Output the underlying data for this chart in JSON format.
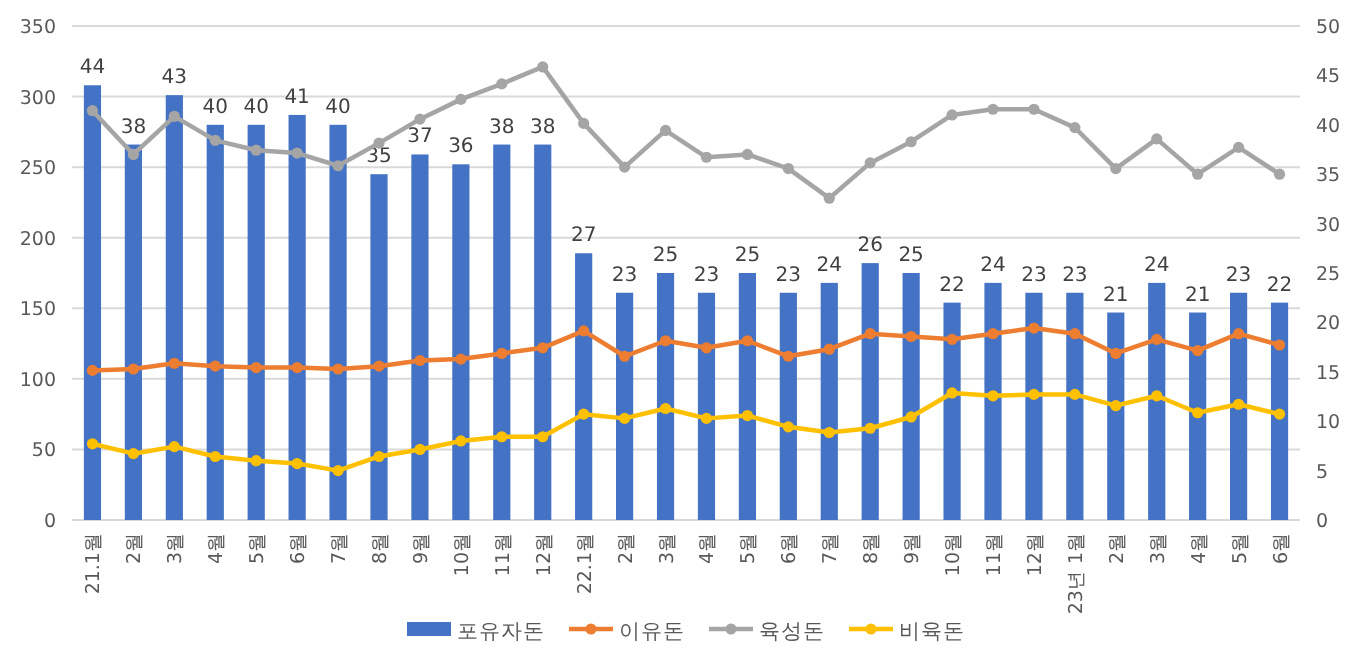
{
  "chart_data": {
    "type": "bar",
    "categories": [
      "21.1월",
      "2월",
      "3월",
      "4월",
      "5월",
      "6월",
      "7월",
      "8월",
      "9월",
      "10월",
      "11월",
      "12월",
      "22.1월",
      "2월",
      "3월",
      "4월",
      "5월",
      "6월",
      "7월",
      "8월",
      "9월",
      "10월",
      "11월",
      "12월",
      "23년 1월",
      "2월",
      "3월",
      "4월",
      "5월",
      "6월"
    ],
    "series": [
      {
        "name": "포유자돈",
        "axis": "y2",
        "color": "#4472c4",
        "values": [
          44,
          38,
          43,
          40,
          40,
          41,
          40,
          35,
          37,
          36,
          38,
          38,
          27,
          23,
          25,
          23,
          25,
          23,
          24,
          26,
          25,
          22,
          24,
          23,
          23,
          21,
          24,
          21,
          23,
          22
        ],
        "value_labels": [
          "44",
          "38",
          "43",
          "40",
          "40",
          "41",
          "40",
          "35",
          "37",
          "36",
          "38",
          "38",
          "27",
          "23",
          "25",
          "23",
          "25",
          "23",
          "24",
          "26",
          "25",
          "22",
          "24",
          "23",
          "23",
          "21",
          "24",
          "21",
          "23",
          "22"
        ]
      },
      {
        "name": "이유돈",
        "type": "line",
        "color": "#ed7d31",
        "values": [
          106,
          107,
          111,
          109,
          108,
          108,
          107,
          109,
          113,
          114,
          118,
          122,
          134,
          116,
          127,
          122,
          127,
          116,
          121,
          132,
          130,
          128,
          132,
          136,
          132,
          118,
          128,
          120,
          132,
          124
        ]
      },
      {
        "name": "육성돈",
        "type": "line",
        "color": "#a5a5a5",
        "values": [
          290,
          259,
          286,
          269,
          262,
          260,
          251,
          267,
          284,
          298,
          309,
          321,
          281,
          250,
          276,
          257,
          259,
          249,
          228,
          253,
          268,
          287,
          291,
          291,
          278,
          249,
          270,
          245,
          264,
          245
        ]
      },
      {
        "name": "비육돈",
        "type": "line",
        "color": "#ffc000",
        "values": [
          54,
          47,
          52,
          45,
          42,
          40,
          35,
          45,
          50,
          56,
          59,
          59,
          75,
          72,
          79,
          72,
          74,
          66,
          62,
          65,
          73,
          90,
          88,
          89,
          89,
          81,
          88,
          76,
          82,
          75
        ]
      }
    ],
    "ylim": [
      0,
      350
    ],
    "yticks": [
      0,
      50,
      100,
      150,
      200,
      250,
      300,
      350
    ],
    "y2lim": [
      0,
      50
    ],
    "y2ticks": [
      0,
      5,
      10,
      15,
      20,
      25,
      30,
      35,
      40,
      45,
      50
    ],
    "grid": "y",
    "legend": "bottom",
    "marker": "circle",
    "line_style": "solid"
  }
}
